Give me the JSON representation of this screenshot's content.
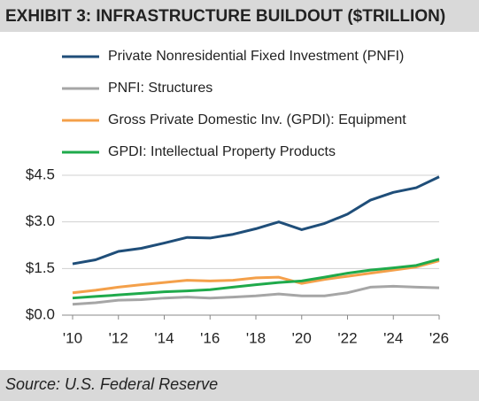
{
  "chart_data": {
    "type": "line",
    "title": "EXHIBIT 3: INFRASTRUCTURE BUILDOUT ($TRILLION)",
    "source": "Source: U.S. Federal Reserve",
    "x": [
      2010,
      2011,
      2012,
      2013,
      2014,
      2015,
      2016,
      2017,
      2018,
      2019,
      2020,
      2021,
      2022,
      2023,
      2024,
      2025,
      2026
    ],
    "series": [
      {
        "name": "Private Nonresidential Fixed Investment (PNFI)",
        "color": "#1f4e79",
        "values": [
          1.65,
          1.78,
          2.05,
          2.15,
          2.32,
          2.5,
          2.48,
          2.6,
          2.78,
          3.0,
          2.75,
          2.95,
          3.25,
          3.7,
          3.95,
          4.1,
          4.45
        ]
      },
      {
        "name": "PNFI: Structures",
        "color": "#a6a6a6",
        "values": [
          0.35,
          0.4,
          0.48,
          0.5,
          0.55,
          0.58,
          0.55,
          0.58,
          0.62,
          0.68,
          0.62,
          0.62,
          0.72,
          0.9,
          0.93,
          0.9,
          0.88
        ]
      },
      {
        "name": "Gross Private Domestic Inv. (GPDI): Equipment",
        "color": "#f4a04a",
        "values": [
          0.72,
          0.8,
          0.9,
          0.98,
          1.05,
          1.12,
          1.1,
          1.12,
          1.2,
          1.22,
          1.02,
          1.15,
          1.25,
          1.35,
          1.45,
          1.55,
          1.75
        ]
      },
      {
        "name": "GPDI: Intellectual Property Products",
        "color": "#1faa4b",
        "values": [
          0.55,
          0.6,
          0.65,
          0.7,
          0.75,
          0.78,
          0.82,
          0.9,
          0.98,
          1.05,
          1.1,
          1.22,
          1.35,
          1.45,
          1.52,
          1.6,
          1.8
        ]
      }
    ],
    "xlim": [
      2010,
      2026
    ],
    "xticks": [
      {
        "value": 2010,
        "label": "'10"
      },
      {
        "value": 2012,
        "label": "'12"
      },
      {
        "value": 2014,
        "label": "'14"
      },
      {
        "value": 2016,
        "label": "'16"
      },
      {
        "value": 2018,
        "label": "'18"
      },
      {
        "value": 2020,
        "label": "'20"
      },
      {
        "value": 2022,
        "label": "'22"
      },
      {
        "value": 2024,
        "label": "'24"
      },
      {
        "value": 2026,
        "label": "'26"
      }
    ],
    "ylim": [
      0,
      4.5
    ],
    "yticks": [
      {
        "value": 0,
        "label": "$0.0"
      },
      {
        "value": 1.5,
        "label": "$1.5"
      },
      {
        "value": 3,
        "label": "$3.0"
      },
      {
        "value": 4.5,
        "label": "$4.5"
      }
    ],
    "grid": true
  }
}
